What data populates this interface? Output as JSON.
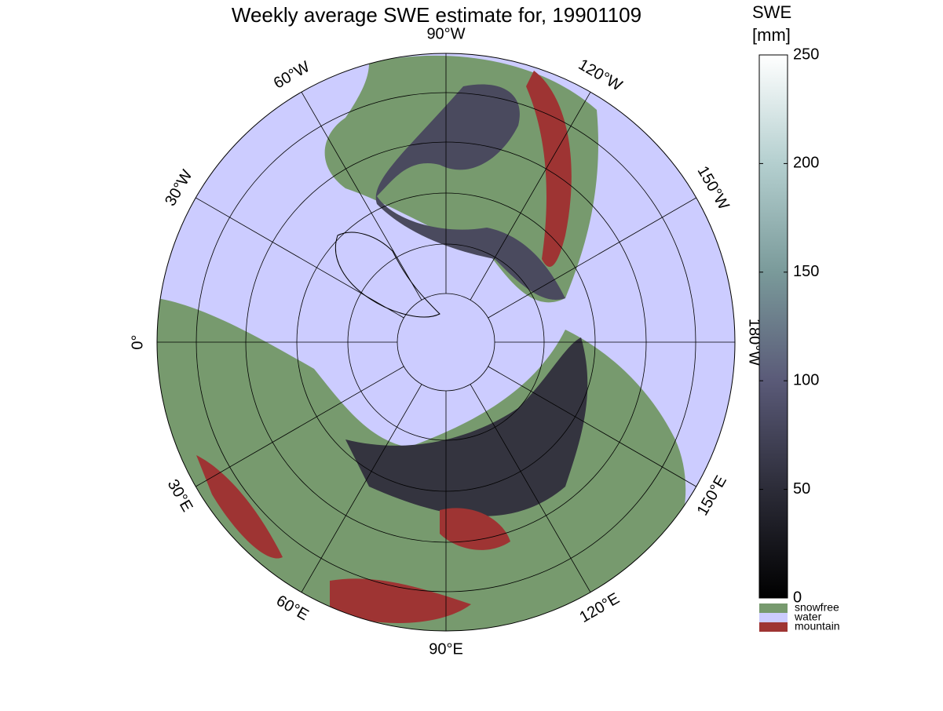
{
  "title": "Weekly average SWE estimate for, 19901109",
  "map": {
    "longitude_labels": [
      "0°",
      "30°W",
      "60°W",
      "90°W",
      "120°W",
      "150°W",
      "180°W",
      "150°E",
      "120°E",
      "90°E",
      "60°E",
      "30°E"
    ]
  },
  "colorbar": {
    "title_lines": [
      "SWE",
      "[mm]"
    ],
    "lim": [
      0,
      250
    ],
    "ticks": [
      0,
      50,
      100,
      150,
      200,
      250
    ]
  },
  "legend": [
    {
      "label": "snowfree",
      "color": "#779a6e"
    },
    {
      "label": "water",
      "color": "#ccccff"
    },
    {
      "label": "mountain",
      "color": "#9e3433"
    }
  ]
}
